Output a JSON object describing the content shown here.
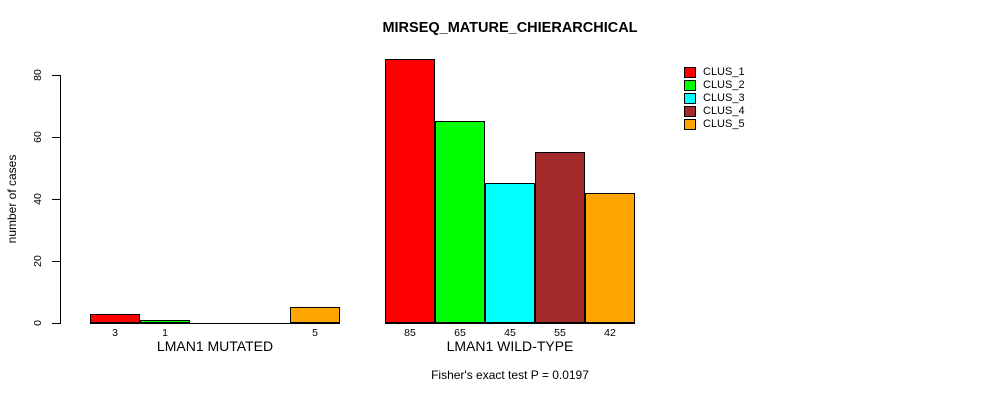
{
  "chart_data": {
    "type": "bar",
    "title": "MIRSEQ_MATURE_CHIERARCHICAL",
    "ylabel": "number of cases",
    "xlabel": "",
    "ylim": [
      0,
      88
    ],
    "yticks": [
      0,
      20,
      40,
      60,
      80
    ],
    "grid": false,
    "legend_position": "top-right",
    "series": [
      {
        "name": "CLUS_1",
        "color": "#ff0000"
      },
      {
        "name": "CLUS_2",
        "color": "#00ff00"
      },
      {
        "name": "CLUS_3",
        "color": "#00ffff"
      },
      {
        "name": "CLUS_4",
        "color": "#a52a2a"
      },
      {
        "name": "CLUS_5",
        "color": "#ffa500"
      }
    ],
    "groups": [
      {
        "label": "LMAN1 MUTATED",
        "values": [
          3,
          1,
          0,
          0,
          5
        ],
        "bar_labels": [
          "3",
          "1",
          "",
          "",
          "5"
        ]
      },
      {
        "label": "LMAN1 WILD-TYPE",
        "values": [
          85,
          65,
          45,
          55,
          42
        ],
        "bar_labels": [
          "85",
          "65",
          "45",
          "55",
          "42"
        ]
      }
    ],
    "caption": "Fisher's exact test P = 0.0197"
  }
}
